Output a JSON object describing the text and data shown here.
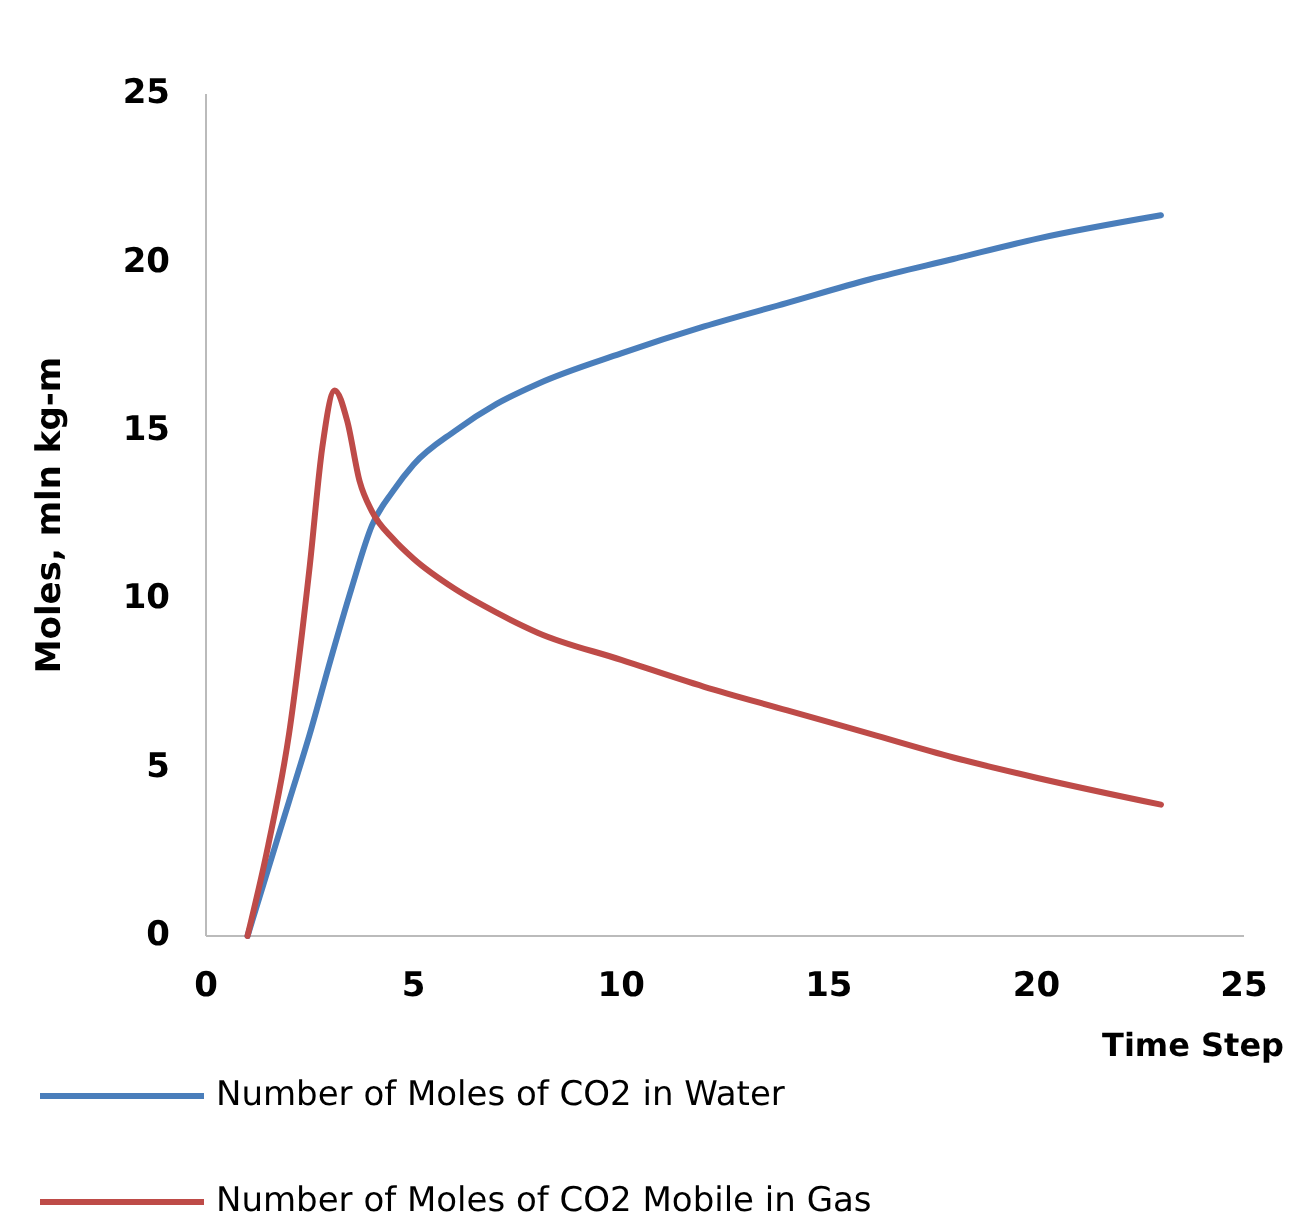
{
  "chart_data": {
    "type": "line",
    "xlabel": "Time Step",
    "ylabel": "Moles, mln kg-m",
    "xlim": [
      0,
      25
    ],
    "ylim": [
      0,
      25
    ],
    "xticks": [
      0,
      5,
      10,
      15,
      20,
      25
    ],
    "yticks": [
      0,
      5,
      10,
      15,
      20,
      25
    ],
    "grid": false,
    "legend": "bottom",
    "marker": "none",
    "line_style": "solid",
    "series": [
      {
        "name": "Number of Moles of CO2 in Water",
        "color": "#4a7ebb",
        "x": [
          1,
          1.5,
          2,
          2.5,
          3,
          3.5,
          4,
          4.5,
          5,
          6,
          7,
          8,
          10,
          12,
          14,
          16,
          18,
          20,
          23
        ],
        "values": [
          0,
          2,
          4,
          6,
          8.2,
          10.3,
          12.2,
          13.2,
          14,
          15,
          15.8,
          16.4,
          17.3,
          18.1,
          18.8,
          19.5,
          20.1,
          20.7,
          21.4
        ]
      },
      {
        "name": "Number of Moles of CO2 Mobile in Gas",
        "color": "#be4b48",
        "x": [
          1,
          1.5,
          2,
          2.5,
          2.8,
          3.1,
          3.4,
          3.7,
          4,
          4.5,
          5,
          6,
          7,
          8,
          10,
          12,
          14,
          16,
          18,
          20,
          23
        ],
        "values": [
          0,
          2.7,
          6,
          11,
          14.5,
          16.2,
          15.3,
          13.5,
          12.6,
          11.8,
          11.2,
          10.3,
          9.6,
          9,
          8.2,
          7.4,
          6.7,
          6,
          5.3,
          4.7,
          3.9
        ]
      }
    ]
  }
}
